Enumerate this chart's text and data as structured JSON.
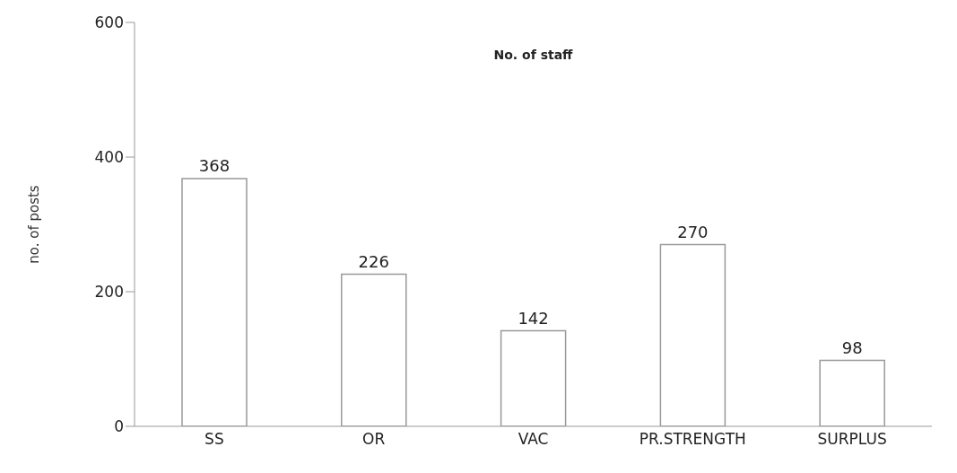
{
  "chart_data": {
    "type": "bar",
    "title": "No. of staff",
    "ylabel": "no. of posts",
    "categories": [
      "SS",
      "OR",
      "VAC",
      "PR.STRENGTH",
      "SURPLUS"
    ],
    "values": [
      368,
      226,
      142,
      270,
      98
    ],
    "color": "#ffffff",
    "ylim": [
      0,
      600
    ],
    "yticks": [
      0,
      200,
      400,
      600
    ],
    "grid": false,
    "data_labels": true
  }
}
